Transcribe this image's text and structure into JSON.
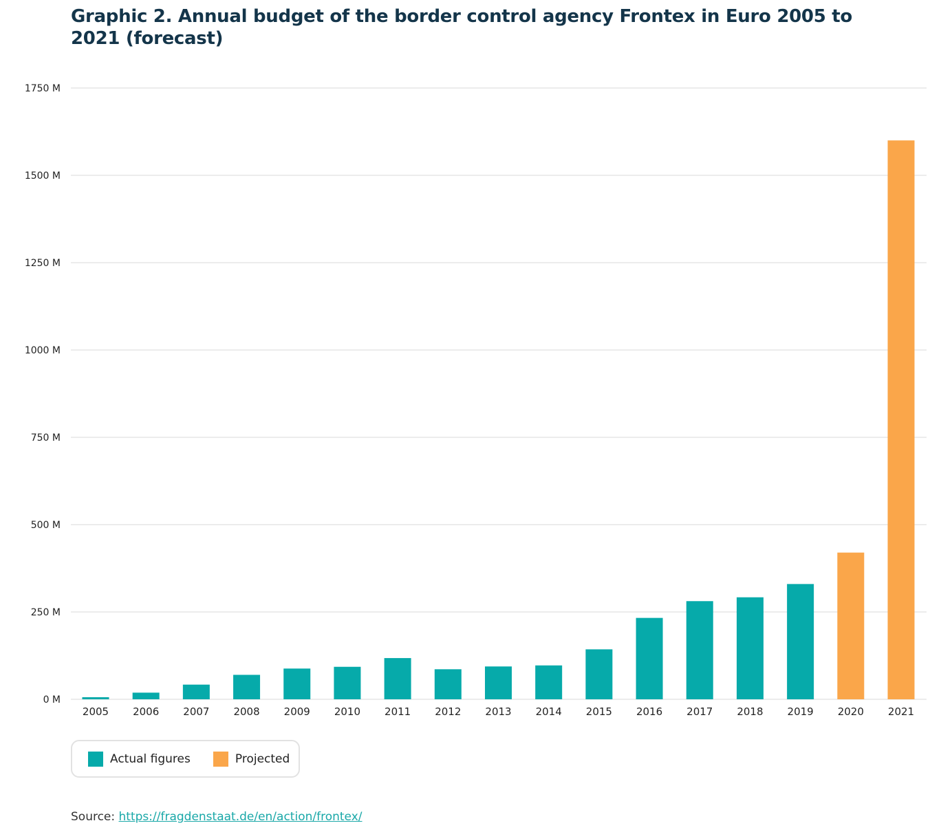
{
  "colors": {
    "actual": "#06aaaa",
    "projected": "#faa64a",
    "title": "#14354a",
    "grid": "#e0e0e0",
    "axis_text": "#222222"
  },
  "chart_data": {
    "type": "bar",
    "title": "Graphic 2. Annual budget of the border control agency Frontex in Euro 2005 to 2021 (forecast)",
    "categories": [
      "2005",
      "2006",
      "2007",
      "2008",
      "2009",
      "2010",
      "2011",
      "2012",
      "2013",
      "2014",
      "2015",
      "2016",
      "2017",
      "2018",
      "2019",
      "2020",
      "2021"
    ],
    "values": [
      6,
      19,
      42,
      70,
      88,
      93,
      118,
      86,
      94,
      97,
      143,
      233,
      281,
      292,
      330,
      420,
      1600
    ],
    "bar_kind": [
      "actual",
      "actual",
      "actual",
      "actual",
      "actual",
      "actual",
      "actual",
      "actual",
      "actual",
      "actual",
      "actual",
      "actual",
      "actual",
      "actual",
      "actual",
      "projected",
      "projected"
    ],
    "yticks": [
      0,
      250,
      500,
      750,
      1000,
      1250,
      1500,
      1750
    ],
    "ytick_labels": [
      "0 M",
      "250 M",
      "500 M",
      "750 M",
      "1000 M",
      "1250 M",
      "1500 M",
      "1750 M"
    ],
    "ylim": [
      0,
      1750
    ],
    "xlabel": "",
    "ylabel": "",
    "grid": true,
    "legend": {
      "position": "bottom-left",
      "entries": [
        {
          "label": "Actual figures",
          "kind": "actual"
        },
        {
          "label": "Projected",
          "kind": "projected"
        }
      ]
    }
  },
  "source": {
    "prefix": "Source: ",
    "link_text": "https://fragdenstaat.de/en/action/frontex/"
  }
}
